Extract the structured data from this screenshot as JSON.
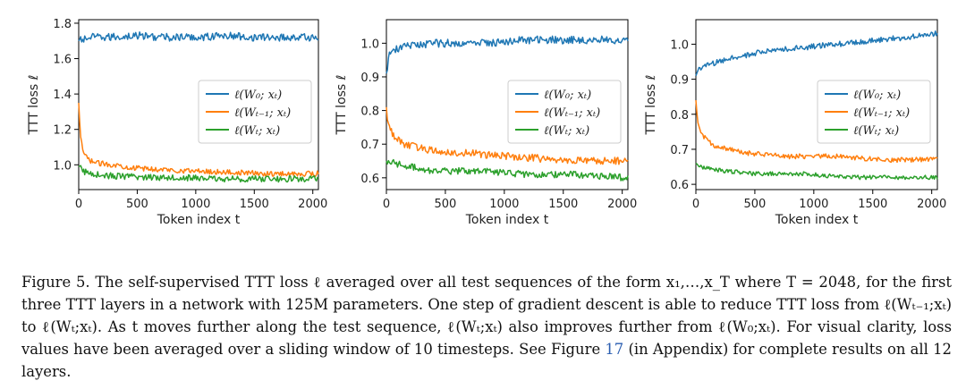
{
  "chart_data": [
    {
      "type": "line",
      "ylabel": "TTT loss ℓ",
      "xlabel": "Token index t",
      "xlim": [
        0,
        2048
      ],
      "ylim": [
        0.86,
        1.82
      ],
      "xticks": [
        0,
        500,
        1000,
        1500,
        2000
      ],
      "yticks": [
        1.0,
        1.2,
        1.4,
        1.6,
        1.8
      ],
      "ytick_labels": [
        "1.0",
        "1.2",
        "1.4",
        "1.6",
        "1.8"
      ],
      "legend": "center-right",
      "series": [
        {
          "name": "ℓ(W₀; xₜ)",
          "color": "#1f77b4",
          "x": [
            0,
            100,
            250,
            500,
            750,
            1000,
            1250,
            1500,
            1750,
            2048
          ],
          "values": [
            1.7,
            1.72,
            1.72,
            1.73,
            1.72,
            1.72,
            1.73,
            1.72,
            1.72,
            1.72
          ],
          "noise": 0.022
        },
        {
          "name": "ℓ(Wₜ₋₁; xₜ)",
          "color": "#ff7f0e",
          "x": [
            0,
            15,
            40,
            80,
            150,
            300,
            500,
            800,
            1200,
            1600,
            2048
          ],
          "values": [
            1.35,
            1.15,
            1.07,
            1.03,
            1.01,
            1.0,
            0.98,
            0.97,
            0.96,
            0.95,
            0.95
          ],
          "noise": 0.015
        },
        {
          "name": "ℓ(Wₜ; xₜ)",
          "color": "#2ca02c",
          "x": [
            0,
            50,
            200,
            500,
            800,
            1200,
            1600,
            2048
          ],
          "values": [
            0.99,
            0.96,
            0.94,
            0.93,
            0.93,
            0.92,
            0.92,
            0.92
          ],
          "noise": 0.018
        }
      ]
    },
    {
      "type": "line",
      "ylabel": "TTT loss ℓ",
      "xlabel": "Token index t",
      "xlim": [
        0,
        2048
      ],
      "ylim": [
        0.565,
        1.07
      ],
      "xticks": [
        0,
        500,
        1000,
        1500,
        2000
      ],
      "yticks": [
        0.6,
        0.7,
        0.8,
        0.9,
        1.0
      ],
      "ytick_labels": [
        "0.6",
        "0.7",
        "0.8",
        "0.9",
        "1.0"
      ],
      "legend": "center-right",
      "series": [
        {
          "name": "ℓ(W₀; xₜ)",
          "color": "#1f77b4",
          "x": [
            0,
            20,
            60,
            150,
            400,
            800,
            1200,
            1600,
            2048
          ],
          "values": [
            0.91,
            0.96,
            0.98,
            0.99,
            1.0,
            1.0,
            1.01,
            1.01,
            1.01
          ],
          "noise": 0.012
        },
        {
          "name": "ℓ(Wₜ₋₁; xₜ)",
          "color": "#ff7f0e",
          "x": [
            0,
            15,
            50,
            150,
            400,
            800,
            1200,
            1600,
            2048
          ],
          "values": [
            0.81,
            0.76,
            0.73,
            0.7,
            0.68,
            0.67,
            0.66,
            0.65,
            0.65
          ],
          "noise": 0.011
        },
        {
          "name": "ℓ(Wₜ; xₜ)",
          "color": "#2ca02c",
          "x": [
            0,
            100,
            400,
            800,
            1200,
            1600,
            2048
          ],
          "values": [
            0.65,
            0.64,
            0.62,
            0.62,
            0.61,
            0.61,
            0.6
          ],
          "noise": 0.01
        }
      ]
    },
    {
      "type": "line",
      "ylabel": "TTT loss ℓ",
      "xlabel": "Token index t",
      "xlim": [
        0,
        2048
      ],
      "ylim": [
        0.585,
        1.07
      ],
      "xticks": [
        0,
        500,
        1000,
        1500,
        2000
      ],
      "yticks": [
        0.6,
        0.7,
        0.8,
        0.9,
        1.0
      ],
      "ytick_labels": [
        "0.6",
        "0.7",
        "0.8",
        "0.9",
        "1.0"
      ],
      "legend": "center-right",
      "series": [
        {
          "name": "ℓ(W₀; xₜ)",
          "color": "#1f77b4",
          "x": [
            0,
            20,
            100,
            300,
            600,
            900,
            1200,
            1500,
            1800,
            2048
          ],
          "values": [
            0.91,
            0.93,
            0.94,
            0.96,
            0.98,
            0.99,
            1.0,
            1.01,
            1.02,
            1.03
          ],
          "noise": 0.008
        },
        {
          "name": "ℓ(Wₜ₋₁; xₜ)",
          "color": "#ff7f0e",
          "x": [
            0,
            15,
            50,
            150,
            400,
            800,
            1200,
            1600,
            2048
          ],
          "values": [
            0.84,
            0.78,
            0.74,
            0.71,
            0.69,
            0.68,
            0.68,
            0.67,
            0.67
          ],
          "noise": 0.007
        },
        {
          "name": "ℓ(Wₜ; xₜ)",
          "color": "#2ca02c",
          "x": [
            0,
            50,
            200,
            500,
            900,
            1300,
            1700,
            2048
          ],
          "values": [
            0.66,
            0.65,
            0.64,
            0.63,
            0.63,
            0.62,
            0.62,
            0.62
          ],
          "noise": 0.006
        }
      ]
    }
  ],
  "caption": {
    "prefix": "Figure 5. The self-supervised TTT loss ℓ averaged over all test sequences of the form x₁,…,x_T where T = 2048, for the first three TTT layers in a network with 125M parameters. One step of gradient descent is able to reduce TTT loss from ℓ(Wₜ₋₁;xₜ) to ℓ(Wₜ;xₜ). As t moves further along the test sequence, ℓ(Wₜ;xₜ) also improves further from ℓ(W₀;xₜ). For visual clarity, loss values have been averaged over a sliding window of 10 timesteps. See Figure",
    "figure_ref": "17",
    "suffix": "(in Appendix) for complete results on all 12 layers."
  }
}
